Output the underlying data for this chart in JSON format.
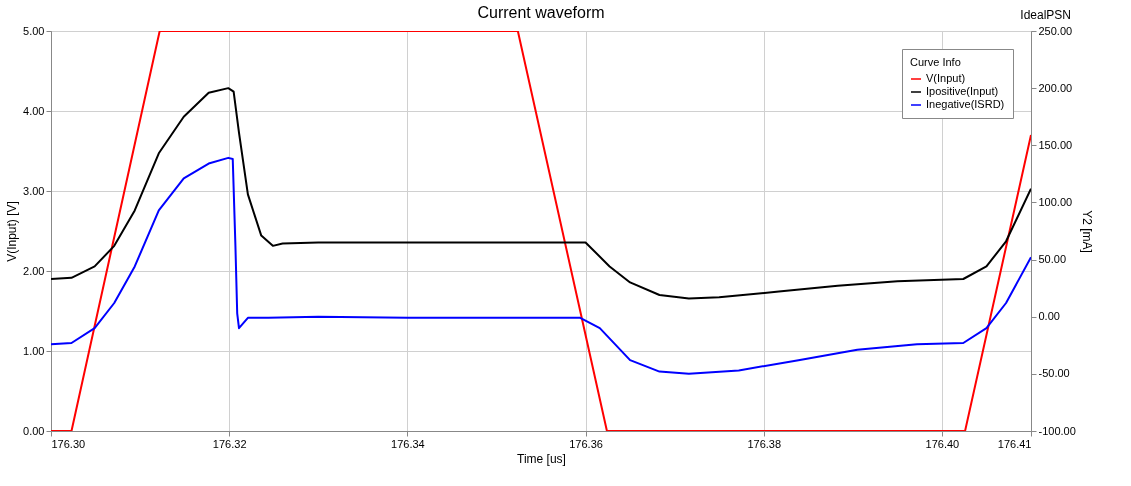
{
  "chart_data": {
    "type": "line",
    "title": "Current waveform",
    "xlabel": "Time [us]",
    "ylabel": "V(Input) [V]",
    "y2label": "Y2 [mA]",
    "legend_title": "Curve Info",
    "annotations": [
      "IdealPSN"
    ],
    "xlim": [
      176.3,
      176.41
    ],
    "xticks": [
      {
        "value": 176.3,
        "label": "176.30"
      },
      {
        "value": 176.32,
        "label": "176.32"
      },
      {
        "value": 176.34,
        "label": "176.34"
      },
      {
        "value": 176.36,
        "label": "176.36"
      },
      {
        "value": 176.38,
        "label": "176.38"
      },
      {
        "value": 176.4,
        "label": "176.40"
      },
      {
        "value": 176.41,
        "label": "176.41"
      }
    ],
    "ylim": [
      0,
      5
    ],
    "yticks": [
      {
        "value": 0,
        "label": "0.00"
      },
      {
        "value": 1,
        "label": "1.00"
      },
      {
        "value": 2,
        "label": "2.00"
      },
      {
        "value": 3,
        "label": "3.00"
      },
      {
        "value": 4,
        "label": "4.00"
      },
      {
        "value": 5,
        "label": "5.00"
      }
    ],
    "y2lim": [
      -100,
      250
    ],
    "y2ticks": [
      {
        "value": -100,
        "label": "-100.00"
      },
      {
        "value": -50,
        "label": "-50.00"
      },
      {
        "value": 0,
        "label": "0.00"
      },
      {
        "value": 50,
        "label": "50.00"
      },
      {
        "value": 100,
        "label": "100.00"
      },
      {
        "value": 150,
        "label": "150.00"
      },
      {
        "value": 200,
        "label": "200.00"
      },
      {
        "value": 250,
        "label": "250.00"
      }
    ],
    "grid": true,
    "legend": "top right",
    "line_style": "solid",
    "series": [
      {
        "name": "V(Input)",
        "color": "#ff0000",
        "x": [
          176.3,
          176.3023,
          176.3122,
          176.3524,
          176.3624,
          176.4026,
          176.41
        ],
        "values": [
          0,
          0,
          5,
          5,
          0,
          0,
          3.7
        ]
      },
      {
        "name": "Ipositive(Input)",
        "color": "#000000",
        "axis": "y2",
        "x": [
          176.3,
          176.3023,
          176.3049,
          176.3071,
          176.3094,
          176.3121,
          176.3149,
          176.3177,
          176.3199,
          176.3205,
          176.3211,
          176.3221,
          176.3236,
          176.3249,
          176.326,
          176.33,
          176.34,
          176.35,
          176.36,
          176.3627,
          176.365,
          176.3683,
          176.3716,
          176.375,
          176.3817,
          176.3883,
          176.395,
          176.4024,
          176.405,
          176.4072,
          176.41
        ],
        "values": [
          33,
          34,
          44,
          62,
          93,
          143,
          175,
          196,
          200,
          197,
          161,
          107,
          71,
          62,
          64,
          65,
          65,
          65,
          65,
          44,
          30,
          19,
          16,
          17,
          22,
          27,
          31,
          33,
          44,
          66,
          112
        ]
      },
      {
        "name": "Inegative(ISRD)",
        "color": "#0000ff",
        "axis": "y2",
        "x": [
          176.3,
          176.3023,
          176.3049,
          176.3071,
          176.3094,
          176.3121,
          176.3149,
          176.3177,
          176.3199,
          176.3204,
          176.3207,
          176.3209,
          176.3211,
          176.3221,
          176.3244,
          176.33,
          176.34,
          176.35,
          176.3594,
          176.3616,
          176.365,
          176.3683,
          176.3716,
          176.3772,
          176.3839,
          176.3905,
          176.3972,
          176.4024,
          176.405,
          176.4072,
          176.41
        ],
        "values": [
          -24,
          -23,
          -10,
          12,
          44,
          93,
          121,
          134,
          139,
          138,
          62,
          3,
          -10,
          -1,
          -1,
          0,
          -1,
          -1,
          -1,
          -10,
          -38,
          -48,
          -50,
          -47,
          -38,
          -29,
          -24,
          -23,
          -10,
          12,
          52
        ]
      }
    ]
  }
}
